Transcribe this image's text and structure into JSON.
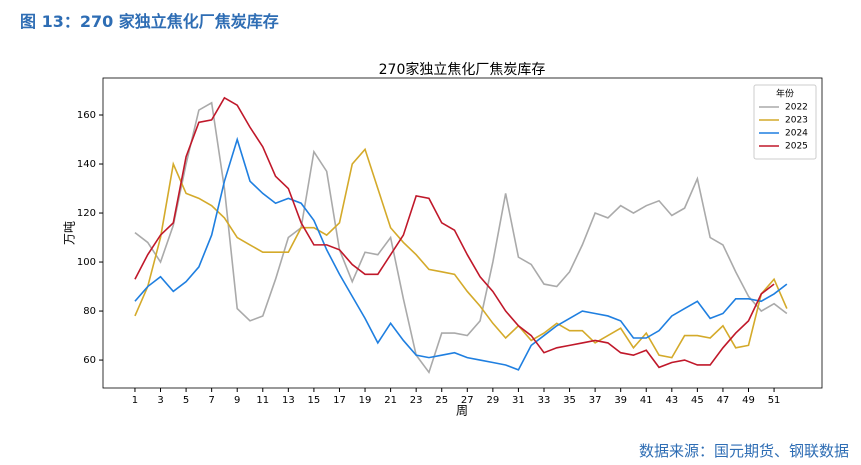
{
  "header": {
    "title": "图 13：270 家独立焦化厂焦炭库存"
  },
  "footer": {
    "source": "数据来源：国元期货、钢联数据"
  },
  "chart_data": {
    "type": "line",
    "title": "270家独立焦化厂焦炭库存",
    "x_label": "周",
    "y_label": "万吨",
    "legend_title": "年份",
    "legend_position": "upper right",
    "grid": false,
    "x": [
      1,
      2,
      3,
      4,
      5,
      6,
      7,
      8,
      9,
      10,
      11,
      12,
      13,
      14,
      15,
      16,
      17,
      18,
      19,
      20,
      21,
      22,
      23,
      24,
      25,
      26,
      27,
      28,
      29,
      30,
      31,
      32,
      33,
      34,
      35,
      36,
      37,
      38,
      39,
      40,
      41,
      42,
      43,
      44,
      45,
      46,
      47,
      48,
      49,
      50,
      51,
      52
    ],
    "xlim": [
      -1.5,
      54.75
    ],
    "xticks": [
      1,
      3,
      5,
      7,
      9,
      11,
      13,
      15,
      17,
      19,
      21,
      23,
      25,
      27,
      29,
      31,
      33,
      35,
      37,
      39,
      41,
      43,
      45,
      47,
      49,
      51
    ],
    "ylim": [
      48.6,
      175.1
    ],
    "yticks": [
      60,
      80,
      100,
      120,
      140,
      160
    ],
    "series": [
      {
        "name": "2022",
        "color": "#aaaaaa",
        "values": [
          112,
          108,
          100,
          115,
          140,
          162,
          165,
          130,
          81,
          76,
          78,
          93,
          110,
          114,
          145,
          137,
          105,
          92,
          104,
          103,
          110,
          85,
          62,
          55,
          71,
          71,
          70,
          76,
          100,
          128,
          102,
          99,
          91,
          90,
          96,
          107,
          120,
          118,
          123,
          120,
          123,
          125,
          119,
          122,
          134,
          110,
          107,
          96,
          86,
          80,
          83,
          79
        ]
      },
      {
        "name": "2023",
        "color": "#d4aa2a",
        "values": [
          78,
          90,
          110,
          140,
          128,
          126,
          123,
          118,
          110,
          107,
          104,
          104,
          104,
          114,
          114,
          111,
          116,
          140,
          146,
          130,
          114,
          108,
          103,
          97,
          96,
          95,
          88,
          82,
          75,
          69,
          74,
          68,
          71,
          75,
          72,
          72,
          67,
          70,
          73,
          65,
          71,
          62,
          61,
          70,
          70,
          69,
          74,
          65,
          66,
          87,
          93,
          81
        ]
      },
      {
        "name": "2024",
        "color": "#1f7fe0",
        "values": [
          84,
          90,
          94,
          88,
          92,
          98,
          111,
          133,
          150,
          133,
          128,
          124,
          126,
          124,
          117,
          105,
          95,
          86,
          77,
          67,
          75,
          68,
          62,
          61,
          62,
          63,
          61,
          60,
          59,
          58,
          56,
          66,
          70,
          74,
          77,
          80,
          79,
          78,
          76,
          69,
          69,
          72,
          78,
          81,
          84,
          77,
          79,
          85,
          85,
          84,
          87,
          91
        ]
      },
      {
        "name": "2025",
        "color": "#c0182a",
        "values": [
          93,
          103,
          111,
          116,
          143,
          157,
          158,
          167,
          164,
          155,
          147,
          135,
          130,
          116,
          107,
          107,
          105,
          99,
          95,
          95,
          103,
          111,
          127,
          126,
          116,
          113,
          103,
          94,
          88,
          80,
          74,
          70,
          63,
          65,
          66,
          67,
          68,
          67,
          63,
          62,
          64,
          57,
          59,
          60,
          58,
          58,
          65,
          71,
          76,
          87,
          91,
          null
        ]
      }
    ]
  }
}
